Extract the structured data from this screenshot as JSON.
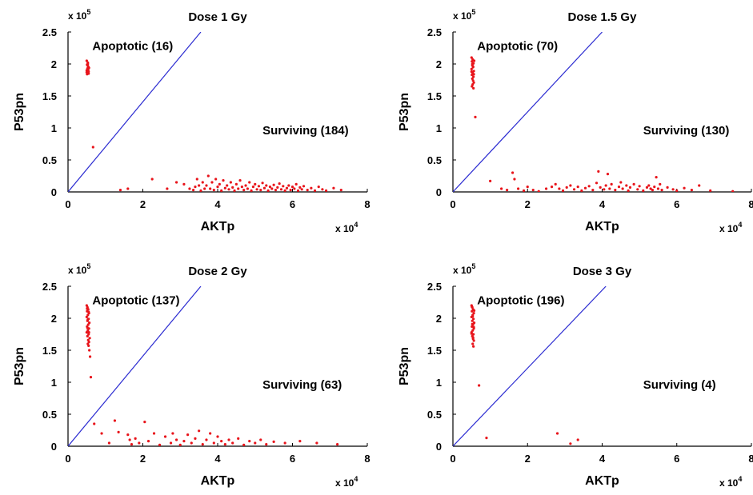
{
  "colors": {
    "points": "#e8141b",
    "threshold_line": "#2b2bd1",
    "axes": "#000000"
  },
  "chart_data": [
    {
      "type": "scatter",
      "title": "Dose 1 Gy",
      "xlabel": "AKTp",
      "ylabel": "P53pn",
      "x_multiplier": "x 10",
      "x_multiplier_exp": "4",
      "y_multiplier": "x 10",
      "y_multiplier_exp": "5",
      "xlim": [
        0,
        80000
      ],
      "ylim": [
        0,
        250000
      ],
      "xticks": [
        "0",
        "2",
        "4",
        "6",
        "8"
      ],
      "yticks": [
        "0",
        "0.5",
        "1",
        "1.5",
        "2",
        "2.5"
      ],
      "threshold_line": [
        [
          0,
          0
        ],
        [
          35500,
          250000
        ]
      ],
      "annotations": [
        {
          "text": "Apoptotic (16)",
          "x": 6500,
          "y": 222000
        },
        {
          "text": "Surviving (184)",
          "x": 52000,
          "y": 90000
        }
      ],
      "points": [
        [
          5000,
          205000
        ],
        [
          5300,
          202000
        ],
        [
          5100,
          199000
        ],
        [
          5400,
          196000
        ],
        [
          5200,
          193000
        ],
        [
          5000,
          190000
        ],
        [
          5500,
          188000
        ],
        [
          5300,
          186000
        ],
        [
          5100,
          184000
        ],
        [
          5400,
          191000
        ],
        [
          5200,
          198000
        ],
        [
          5600,
          194000
        ],
        [
          5000,
          187000
        ],
        [
          5300,
          200000
        ],
        [
          5500,
          185000
        ],
        [
          6700,
          70000
        ],
        [
          14000,
          3000
        ],
        [
          16000,
          5000
        ],
        [
          22500,
          20000
        ],
        [
          26500,
          5000
        ],
        [
          29000,
          15000
        ],
        [
          31000,
          12000
        ],
        [
          32500,
          5000
        ],
        [
          33500,
          3000
        ],
        [
          34000,
          8000
        ],
        [
          34500,
          20000
        ],
        [
          35000,
          10000
        ],
        [
          35500,
          2000
        ],
        [
          36000,
          15000
        ],
        [
          36500,
          5000
        ],
        [
          37000,
          10000
        ],
        [
          37500,
          25000
        ],
        [
          38000,
          5000
        ],
        [
          38500,
          15000
        ],
        [
          39000,
          3000
        ],
        [
          39500,
          20000
        ],
        [
          40000,
          8000
        ],
        [
          40500,
          12000
        ],
        [
          41000,
          2000
        ],
        [
          41500,
          18000
        ],
        [
          42000,
          6000
        ],
        [
          42500,
          10000
        ],
        [
          43000,
          4000
        ],
        [
          43500,
          15000
        ],
        [
          44000,
          7000
        ],
        [
          44500,
          2000
        ],
        [
          45000,
          12000
        ],
        [
          45500,
          5000
        ],
        [
          46000,
          18000
        ],
        [
          46500,
          8000
        ],
        [
          47000,
          3000
        ],
        [
          47500,
          10000
        ],
        [
          48000,
          5000
        ],
        [
          48500,
          15000
        ],
        [
          49000,
          2000
        ],
        [
          49500,
          8000
        ],
        [
          50000,
          12000
        ],
        [
          50500,
          4000
        ],
        [
          51000,
          9000
        ],
        [
          51500,
          3000
        ],
        [
          52000,
          14000
        ],
        [
          52500,
          6000
        ],
        [
          53000,
          10000
        ],
        [
          53500,
          2000
        ],
        [
          54000,
          8000
        ],
        [
          54500,
          5000
        ],
        [
          55000,
          11000
        ],
        [
          55500,
          3000
        ],
        [
          56000,
          7000
        ],
        [
          56500,
          13000
        ],
        [
          57000,
          4000
        ],
        [
          57500,
          9000
        ],
        [
          58000,
          2000
        ],
        [
          58500,
          6000
        ],
        [
          59000,
          10000
        ],
        [
          59500,
          3000
        ],
        [
          60000,
          8000
        ],
        [
          60500,
          5000
        ],
        [
          61000,
          12000
        ],
        [
          61500,
          2000
        ],
        [
          62000,
          7000
        ],
        [
          62500,
          4000
        ],
        [
          63000,
          9000
        ],
        [
          64000,
          3000
        ],
        [
          65000,
          6000
        ],
        [
          66000,
          2000
        ],
        [
          67000,
          8000
        ],
        [
          68000,
          4000
        ],
        [
          69000,
          2000
        ],
        [
          71000,
          6000
        ],
        [
          73000,
          3000
        ]
      ]
    },
    {
      "type": "scatter",
      "title": "Dose 1.5 Gy",
      "xlabel": "AKTp",
      "ylabel": "P53pn",
      "x_multiplier": "x 10",
      "x_multiplier_exp": "4",
      "y_multiplier": "x 10",
      "y_multiplier_exp": "5",
      "xlim": [
        0,
        80000
      ],
      "ylim": [
        0,
        250000
      ],
      "xticks": [
        "0",
        "2",
        "4",
        "6",
        "8"
      ],
      "yticks": [
        "0",
        "0.5",
        "1",
        "1.5",
        "2",
        "2.5"
      ],
      "threshold_line": [
        [
          0,
          0
        ],
        [
          40000,
          250000
        ]
      ],
      "annotations": [
        {
          "text": "Apoptotic (70)",
          "x": 6500,
          "y": 222000
        },
        {
          "text": "Surviving (130)",
          "x": 51000,
          "y": 90000
        }
      ],
      "points": [
        [
          5000,
          210000
        ],
        [
          5300,
          207000
        ],
        [
          5100,
          204000
        ],
        [
          5500,
          201000
        ],
        [
          5200,
          198000
        ],
        [
          5400,
          195000
        ],
        [
          5000,
          192000
        ],
        [
          5600,
          189000
        ],
        [
          5300,
          186000
        ],
        [
          5100,
          183000
        ],
        [
          5500,
          180000
        ],
        [
          5200,
          177000
        ],
        [
          5400,
          174000
        ],
        [
          5600,
          171000
        ],
        [
          5300,
          168000
        ],
        [
          5100,
          165000
        ],
        [
          5500,
          162000
        ],
        [
          5700,
          205000
        ],
        [
          5200,
          200000
        ],
        [
          5400,
          196000
        ],
        [
          5000,
          188000
        ],
        [
          5600,
          184000
        ],
        [
          6000,
          117000
        ],
        [
          10000,
          17000
        ],
        [
          13000,
          5000
        ],
        [
          14500,
          3000
        ],
        [
          16000,
          30000
        ],
        [
          16500,
          20000
        ],
        [
          17500,
          5000
        ],
        [
          19000,
          2000
        ],
        [
          20000,
          8000
        ],
        [
          21500,
          3000
        ],
        [
          23000,
          1000
        ],
        [
          25000,
          5000
        ],
        [
          26500,
          8000
        ],
        [
          27500,
          12000
        ],
        [
          28500,
          5000
        ],
        [
          29500,
          2000
        ],
        [
          30500,
          7000
        ],
        [
          31500,
          10000
        ],
        [
          32500,
          4000
        ],
        [
          33500,
          8000
        ],
        [
          34500,
          2000
        ],
        [
          35500,
          6000
        ],
        [
          36500,
          9000
        ],
        [
          37500,
          3000
        ],
        [
          38500,
          14000
        ],
        [
          39000,
          32000
        ],
        [
          39500,
          7000
        ],
        [
          40500,
          4000
        ],
        [
          41000,
          10000
        ],
        [
          41500,
          28000
        ],
        [
          42000,
          5000
        ],
        [
          42500,
          12000
        ],
        [
          43500,
          3000
        ],
        [
          44500,
          8000
        ],
        [
          45000,
          15000
        ],
        [
          45500,
          5000
        ],
        [
          46500,
          10000
        ],
        [
          47000,
          2000
        ],
        [
          47500,
          7000
        ],
        [
          48500,
          12000
        ],
        [
          49500,
          4000
        ],
        [
          50000,
          9000
        ],
        [
          51000,
          2000
        ],
        [
          52000,
          7000
        ],
        [
          52500,
          10000
        ],
        [
          53000,
          5000
        ],
        [
          53500,
          3000
        ],
        [
          54000,
          8000
        ],
        [
          54500,
          23000
        ],
        [
          55000,
          5000
        ],
        [
          55500,
          12000
        ],
        [
          56000,
          3000
        ],
        [
          57500,
          7000
        ],
        [
          59000,
          4000
        ],
        [
          60000,
          2000
        ],
        [
          62000,
          6000
        ],
        [
          64000,
          3000
        ],
        [
          66000,
          10000
        ],
        [
          69000,
          2000
        ],
        [
          75000,
          1000
        ]
      ]
    },
    {
      "type": "scatter",
      "title": "Dose 2 Gy",
      "xlabel": "AKTp",
      "ylabel": "P53pn",
      "x_multiplier": "x 10",
      "x_multiplier_exp": "4",
      "y_multiplier": "x 10",
      "y_multiplier_exp": "5",
      "xlim": [
        0,
        80000
      ],
      "ylim": [
        0,
        250000
      ],
      "xticks": [
        "0",
        "2",
        "4",
        "6",
        "8"
      ],
      "yticks": [
        "0",
        "0.5",
        "1",
        "1.5",
        "2",
        "2.5"
      ],
      "threshold_line": [
        [
          0,
          0
        ],
        [
          35500,
          250000
        ]
      ],
      "annotations": [
        {
          "text": "Apoptotic (137)",
          "x": 6500,
          "y": 222000
        },
        {
          "text": "Surviving (63)",
          "x": 52000,
          "y": 90000
        }
      ],
      "points": [
        [
          5000,
          220000
        ],
        [
          5200,
          217000
        ],
        [
          5400,
          214000
        ],
        [
          5100,
          211000
        ],
        [
          5600,
          208000
        ],
        [
          5300,
          205000
        ],
        [
          5000,
          202000
        ],
        [
          5500,
          199000
        ],
        [
          5200,
          196000
        ],
        [
          5700,
          193000
        ],
        [
          5400,
          190000
        ],
        [
          5100,
          187000
        ],
        [
          5600,
          184000
        ],
        [
          5300,
          181000
        ],
        [
          5000,
          178000
        ],
        [
          5500,
          175000
        ],
        [
          5200,
          172000
        ],
        [
          5800,
          169000
        ],
        [
          5400,
          166000
        ],
        [
          5600,
          163000
        ],
        [
          5300,
          160000
        ],
        [
          5500,
          157000
        ],
        [
          5700,
          150000
        ],
        [
          5900,
          140000
        ],
        [
          6100,
          108000
        ],
        [
          5100,
          215000
        ],
        [
          5500,
          210000
        ],
        [
          5300,
          198000
        ],
        [
          5200,
          185000
        ],
        [
          5600,
          178000
        ],
        [
          7000,
          35000
        ],
        [
          9000,
          20000
        ],
        [
          11000,
          5000
        ],
        [
          12500,
          40000
        ],
        [
          13500,
          22000
        ],
        [
          16000,
          18000
        ],
        [
          16500,
          10000
        ],
        [
          17000,
          3000
        ],
        [
          18000,
          12000
        ],
        [
          19000,
          5000
        ],
        [
          20500,
          38000
        ],
        [
          21500,
          8000
        ],
        [
          23000,
          20000
        ],
        [
          24500,
          2000
        ],
        [
          26000,
          15000
        ],
        [
          27500,
          5000
        ],
        [
          28000,
          20000
        ],
        [
          29000,
          10000
        ],
        [
          30000,
          2000
        ],
        [
          31000,
          8000
        ],
        [
          32000,
          18000
        ],
        [
          33000,
          5000
        ],
        [
          34000,
          12000
        ],
        [
          35000,
          24000
        ],
        [
          36000,
          3000
        ],
        [
          37000,
          10000
        ],
        [
          38000,
          20000
        ],
        [
          39000,
          5000
        ],
        [
          40000,
          15000
        ],
        [
          41000,
          8000
        ],
        [
          42000,
          3000
        ],
        [
          43000,
          10000
        ],
        [
          44000,
          5000
        ],
        [
          45500,
          12000
        ],
        [
          47000,
          2000
        ],
        [
          48500,
          8000
        ],
        [
          50000,
          5000
        ],
        [
          51500,
          10000
        ],
        [
          53000,
          3000
        ],
        [
          55000,
          7000
        ],
        [
          58000,
          5000
        ],
        [
          62000,
          8000
        ],
        [
          66500,
          5000
        ],
        [
          72000,
          3000
        ]
      ]
    },
    {
      "type": "scatter",
      "title": "Dose 3 Gy",
      "xlabel": "AKTp",
      "ylabel": "P53pn",
      "x_multiplier": "x 10",
      "x_multiplier_exp": "4",
      "y_multiplier": "x 10",
      "y_multiplier_exp": "5",
      "xlim": [
        0,
        80000
      ],
      "ylim": [
        0,
        250000
      ],
      "xticks": [
        "0",
        "2",
        "4",
        "6",
        "8"
      ],
      "yticks": [
        "0",
        "0.5",
        "1",
        "1.5",
        "2",
        "2.5"
      ],
      "threshold_line": [
        [
          0,
          0
        ],
        [
          41000,
          250000
        ]
      ],
      "annotations": [
        {
          "text": "Apoptotic (196)",
          "x": 6500,
          "y": 222000
        },
        {
          "text": "Surviving (4)",
          "x": 51000,
          "y": 90000
        }
      ],
      "points": [
        [
          5000,
          220000
        ],
        [
          5200,
          217000
        ],
        [
          5400,
          214000
        ],
        [
          5100,
          211000
        ],
        [
          5600,
          208000
        ],
        [
          5300,
          205000
        ],
        [
          5000,
          202000
        ],
        [
          5500,
          199000
        ],
        [
          5200,
          196000
        ],
        [
          5700,
          193000
        ],
        [
          5400,
          190000
        ],
        [
          5100,
          187000
        ],
        [
          5600,
          184000
        ],
        [
          5300,
          181000
        ],
        [
          5000,
          178000
        ],
        [
          5500,
          175000
        ],
        [
          5200,
          172000
        ],
        [
          5400,
          168000
        ],
        [
          5600,
          165000
        ],
        [
          5300,
          160000
        ],
        [
          5500,
          156000
        ],
        [
          5100,
          218000
        ],
        [
          5700,
          212000
        ],
        [
          5300,
          203000
        ],
        [
          5200,
          191000
        ],
        [
          5600,
          186000
        ],
        [
          5000,
          176000
        ],
        [
          5400,
          170000
        ],
        [
          7000,
          95000
        ],
        [
          9000,
          13000
        ],
        [
          28000,
          20000
        ],
        [
          31500,
          4000
        ],
        [
          33500,
          10000
        ]
      ]
    }
  ]
}
